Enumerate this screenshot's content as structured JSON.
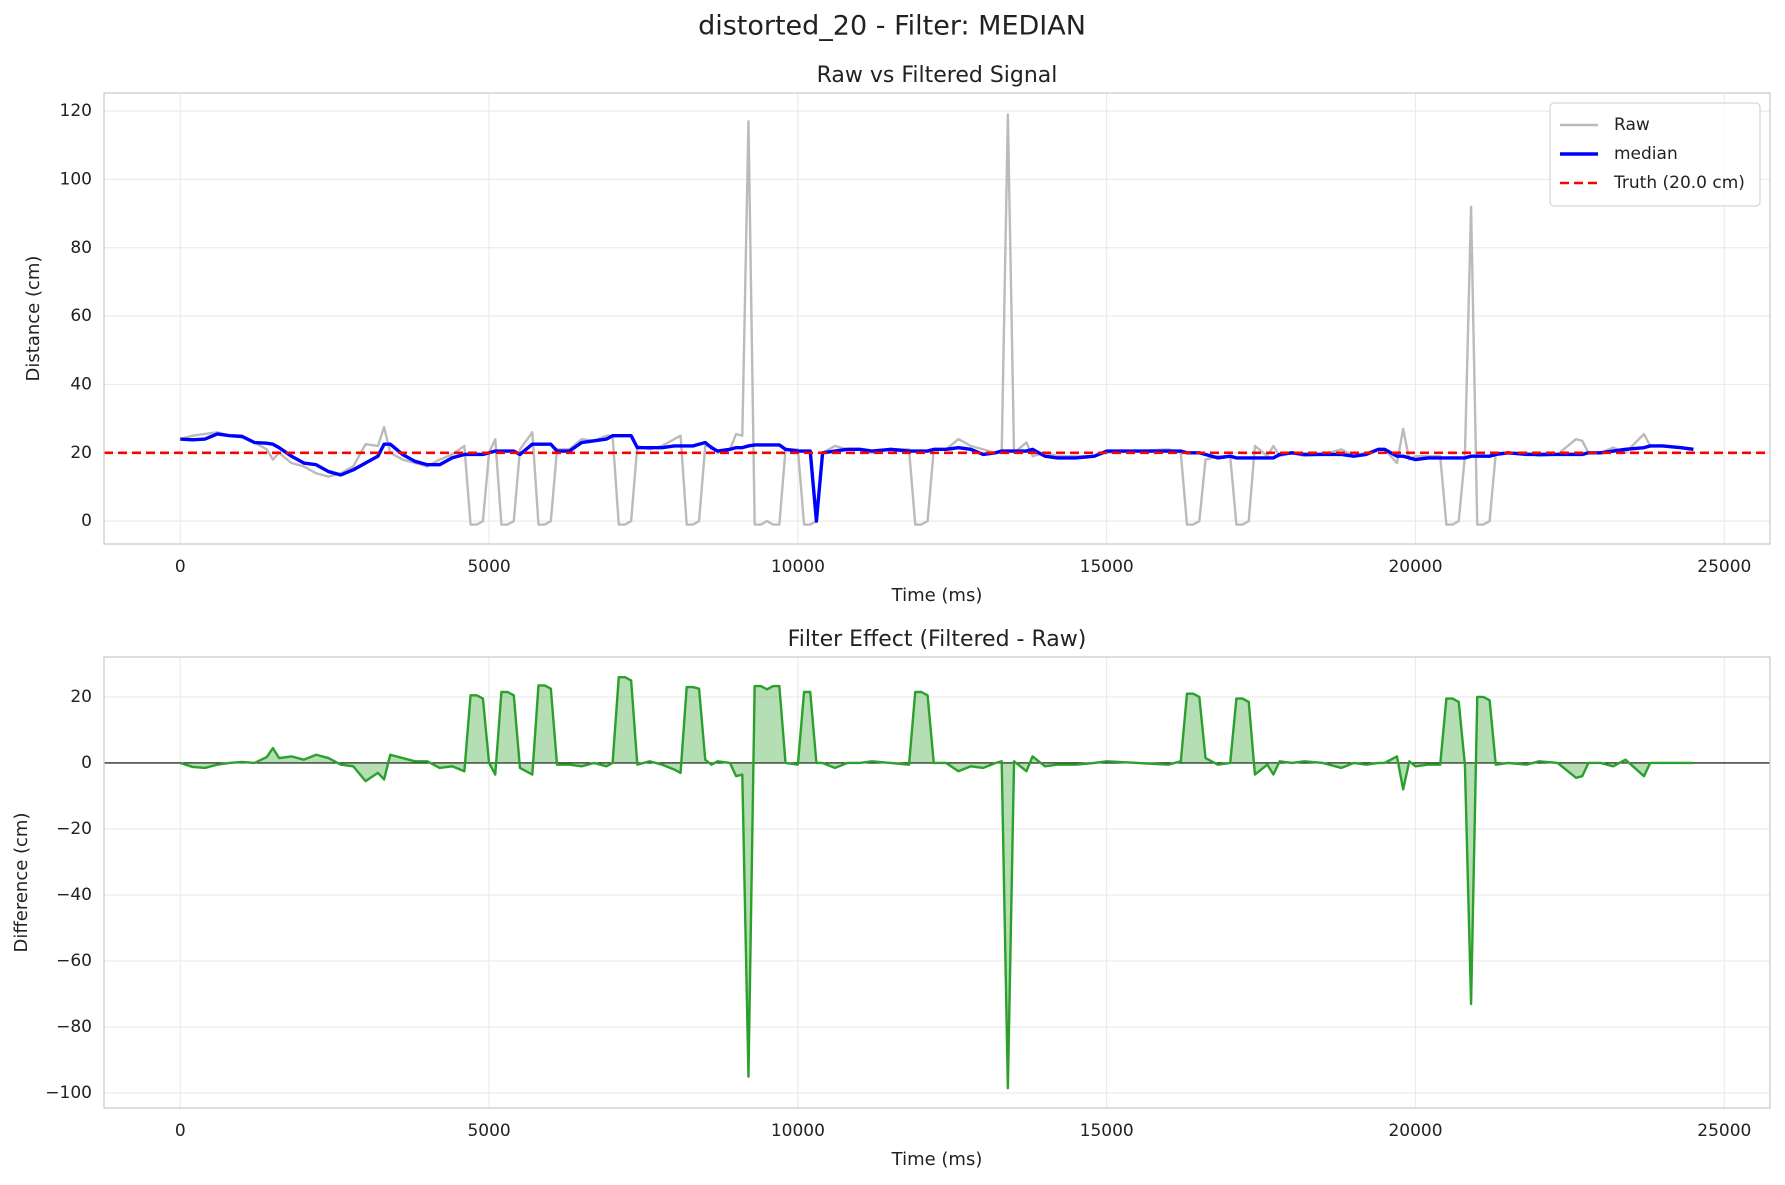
{
  "title": "distorted_20 - Filter: MEDIAN",
  "chart_data": [
    {
      "type": "line",
      "title": "Raw vs Filtered Signal",
      "xlabel": "Time (ms)",
      "ylabel": "Distance (cm)",
      "xlim": [
        -1235,
        25740
      ],
      "ylim": [
        -6.7,
        125.3
      ],
      "xticks": [
        0,
        5000,
        10000,
        15000,
        20000,
        25000
      ],
      "yticks": [
        0,
        20,
        40,
        60,
        80,
        100,
        120
      ],
      "grid": true,
      "legend": "upper right",
      "x": [
        0,
        200,
        400,
        600,
        800,
        1000,
        1200,
        1400,
        1500,
        1600,
        1800,
        2000,
        2200,
        2400,
        2600,
        2800,
        3000,
        3200,
        3300,
        3400,
        3600,
        3800,
        4000,
        4200,
        4400,
        4600,
        4700,
        4800,
        4900,
        5000,
        5100,
        5200,
        5300,
        5400,
        5500,
        5700,
        5800,
        5900,
        6000,
        6100,
        6300,
        6500,
        6700,
        6900,
        7000,
        7100,
        7200,
        7300,
        7400,
        7600,
        7800,
        8000,
        8100,
        8200,
        8300,
        8400,
        8500,
        8600,
        8700,
        8900,
        9000,
        9100,
        9200,
        9300,
        9400,
        9500,
        9600,
        9700,
        9800,
        10000,
        10100,
        10200,
        10300,
        10400,
        10600,
        10800,
        11000,
        11200,
        11500,
        11800,
        11900,
        12000,
        12100,
        12200,
        12400,
        12600,
        12800,
        13000,
        13200,
        13300,
        13400,
        13500,
        13700,
        13800,
        14000,
        14200,
        14500,
        14800,
        15000,
        15500,
        16000,
        16200,
        16300,
        16400,
        16500,
        16600,
        16800,
        17000,
        17100,
        17200,
        17300,
        17400,
        17600,
        17700,
        17800,
        18000,
        18200,
        18500,
        18800,
        19000,
        19200,
        19400,
        19500,
        19700,
        19800,
        19900,
        20000,
        20200,
        20400,
        20500,
        20600,
        20700,
        20800,
        20900,
        21000,
        21100,
        21200,
        21300,
        21500,
        21800,
        22000,
        22300,
        22600,
        22700,
        22800,
        23000,
        23200,
        23400,
        23700,
        23800,
        24000,
        24300,
        24500
      ],
      "series": [
        {
          "name": "Raw",
          "color": "#bbbbbb",
          "width": 2.4,
          "values": [
            24,
            25,
            25.5,
            26,
            25,
            24.5,
            23,
            21,
            18,
            20,
            17,
            16,
            14,
            13,
            14,
            16,
            22.5,
            22,
            27.5,
            20,
            18,
            17,
            16,
            18,
            19.5,
            22,
            -1,
            -1,
            0,
            20,
            24,
            -1,
            -1,
            0,
            21,
            26,
            -1,
            -1,
            0,
            21,
            21,
            24,
            23.5,
            25,
            25,
            -1,
            -1,
            0,
            22,
            21,
            22,
            24,
            25,
            -1,
            -1,
            0,
            22,
            22,
            20,
            21,
            25.5,
            25,
            117,
            -1,
            -1,
            0,
            -1,
            -1,
            21,
            21,
            -1,
            -1,
            0,
            20,
            22,
            21,
            21,
            20,
            21,
            21,
            -1,
            -1,
            0,
            21,
            21,
            24,
            22,
            21,
            20,
            20,
            119,
            20,
            23,
            19,
            20,
            19,
            19,
            19,
            20,
            20.5,
            21,
            20,
            -1,
            -1,
            0,
            18,
            19,
            19,
            -1,
            -1,
            0,
            22,
            19,
            22,
            19,
            20,
            19,
            19.5,
            21,
            19,
            20,
            21,
            21,
            17,
            27,
            18,
            19,
            19,
            19,
            -1,
            -1,
            0,
            19,
            92,
            -1,
            -1,
            0,
            20,
            20,
            20,
            19,
            19.5,
            24,
            23.5,
            20,
            20,
            21.5,
            20,
            25.5,
            22,
            22,
            21.5,
            21
          ]
        },
        {
          "name": "median",
          "color": "#0000ff",
          "width": 3.4,
          "values": [
            24,
            23.8,
            24,
            25.5,
            25,
            24.8,
            23,
            22.8,
            22.5,
            21.5,
            19,
            17,
            16.5,
            14.5,
            13.5,
            15,
            17,
            19,
            22.5,
            22.5,
            19.5,
            17.5,
            16.5,
            16.5,
            18.5,
            19.5,
            19.5,
            19.5,
            19.5,
            20,
            20.5,
            20.5,
            20.5,
            20.5,
            19.5,
            22.5,
            22.5,
            22.5,
            22.5,
            20.5,
            20.5,
            23,
            23.5,
            24,
            25,
            25,
            25,
            25,
            21.5,
            21.5,
            21.5,
            22,
            22,
            22,
            22,
            22.5,
            23,
            21.5,
            20.5,
            21,
            21.5,
            21.5,
            22,
            22.3,
            22.3,
            22.3,
            22.3,
            22.3,
            21,
            20.5,
            20.5,
            20.5,
            0,
            20,
            20.5,
            21,
            21,
            20.5,
            21,
            20.5,
            20.5,
            20.5,
            20.5,
            21,
            21,
            21.5,
            21,
            19.5,
            20,
            20.5,
            20.5,
            20.5,
            20.5,
            21,
            19,
            18.5,
            18.5,
            19,
            20.5,
            20.5,
            20.5,
            20.5,
            20,
            20,
            20,
            19.5,
            18.5,
            19,
            18.5,
            18.5,
            18.5,
            18.5,
            18.5,
            18.5,
            19.5,
            20,
            19.5,
            19.5,
            19.5,
            19,
            19.5,
            21,
            21,
            19,
            19,
            18.5,
            18,
            18.5,
            18.5,
            18.5,
            18.5,
            18.5,
            18.5,
            19,
            19,
            19,
            19,
            19.5,
            20,
            19.5,
            19.5,
            19.5,
            19.5,
            19.5,
            20,
            20,
            20.5,
            21,
            21.5,
            22,
            22,
            21.5,
            21
          ]
        }
      ],
      "hline": {
        "name": "Truth (20.0 cm)",
        "value": 20,
        "color": "#ff0000",
        "dashed": true
      }
    },
    {
      "type": "line",
      "title": "Filter Effect (Filtered - Raw)",
      "xlabel": "Time (ms)",
      "ylabel": "Difference (cm)",
      "xlim": [
        -1235,
        25740
      ],
      "ylim": [
        -104.5,
        32.1
      ],
      "xticks": [
        0,
        5000,
        10000,
        15000,
        20000,
        25000
      ],
      "yticks": [
        {
          "value": -100,
          "label": "−100"
        },
        {
          "value": -80,
          "label": "−80"
        },
        {
          "value": -60,
          "label": "−60"
        },
        {
          "value": -40,
          "label": "−40"
        },
        {
          "value": -20,
          "label": "−20"
        },
        0,
        20
      ],
      "grid": true,
      "x": [
        0,
        200,
        400,
        600,
        800,
        1000,
        1200,
        1400,
        1500,
        1600,
        1800,
        2000,
        2200,
        2400,
        2600,
        2800,
        3000,
        3200,
        3300,
        3400,
        3600,
        3800,
        4000,
        4200,
        4400,
        4600,
        4700,
        4800,
        4900,
        5000,
        5100,
        5200,
        5300,
        5400,
        5500,
        5700,
        5800,
        5900,
        6000,
        6100,
        6300,
        6500,
        6700,
        6900,
        7000,
        7100,
        7200,
        7300,
        7400,
        7600,
        7800,
        8000,
        8100,
        8200,
        8300,
        8400,
        8500,
        8600,
        8700,
        8900,
        9000,
        9100,
        9200,
        9300,
        9400,
        9500,
        9600,
        9700,
        9800,
        10000,
        10100,
        10200,
        10300,
        10400,
        10600,
        10800,
        11000,
        11200,
        11500,
        11800,
        11900,
        12000,
        12100,
        12200,
        12400,
        12600,
        12800,
        13000,
        13200,
        13300,
        13400,
        13500,
        13700,
        13800,
        14000,
        14200,
        14500,
        14800,
        15000,
        15500,
        16000,
        16200,
        16300,
        16400,
        16500,
        16600,
        16800,
        17000,
        17100,
        17200,
        17300,
        17400,
        17600,
        17700,
        17800,
        18000,
        18200,
        18500,
        18800,
        19000,
        19200,
        19400,
        19500,
        19700,
        19800,
        19900,
        20000,
        20200,
        20400,
        20500,
        20600,
        20700,
        20800,
        20900,
        21000,
        21100,
        21200,
        21300,
        21500,
        21800,
        22000,
        22300,
        22600,
        22700,
        22800,
        23000,
        23200,
        23400,
        23700,
        23800,
        24000,
        24300,
        24500
      ],
      "series": [
        {
          "color": "#2ca02c",
          "width": 2.4,
          "fill": true,
          "values": [
            0,
            -1.2,
            -1.5,
            -0.5,
            0,
            0.3,
            0,
            1.8,
            4.5,
            1.5,
            2,
            1,
            2.5,
            1.5,
            -0.5,
            -1,
            -5.5,
            -3,
            -5,
            2.5,
            1.5,
            0.5,
            0.5,
            -1.5,
            -1,
            -2.5,
            20.5,
            20.5,
            19.5,
            0,
            -3.5,
            21.5,
            21.5,
            20.5,
            -1.5,
            -3.5,
            23.5,
            23.5,
            22.5,
            -0.5,
            -0.5,
            -1,
            0,
            -1,
            0,
            26,
            26,
            25,
            -0.5,
            0.5,
            -0.5,
            -2,
            -3,
            23,
            23,
            22.5,
            1,
            -0.5,
            0.5,
            0,
            -4,
            -3.5,
            -95,
            23.3,
            23.3,
            22.3,
            23.3,
            23.3,
            0,
            -0.5,
            21.5,
            21.5,
            0,
            0,
            -1.5,
            0,
            0,
            0.5,
            0,
            -0.5,
            21.5,
            21.5,
            20.5,
            0,
            0,
            -2.5,
            -1,
            -1.5,
            0,
            0.5,
            -98.5,
            0.5,
            -2.5,
            2,
            -1,
            -0.5,
            -0.5,
            0,
            0.5,
            0,
            -0.5,
            0.5,
            21,
            21,
            20,
            1.5,
            -0.5,
            0,
            19.5,
            19.5,
            18.5,
            -3.5,
            -0.5,
            -3.5,
            0.5,
            0,
            0.5,
            0,
            -1.5,
            0,
            -0.5,
            0,
            0,
            2,
            -8,
            0.5,
            -1,
            -0.5,
            -0.5,
            19.5,
            19.5,
            18.5,
            -0.5,
            -73,
            20,
            20,
            19,
            -0.5,
            0,
            -0.5,
            0.5,
            0,
            -4.5,
            -4,
            0,
            0,
            -1,
            1,
            -4,
            0,
            0,
            0,
            0
          ]
        }
      ],
      "hline": {
        "value": 0,
        "color": "#000000",
        "dashed": false
      }
    }
  ]
}
